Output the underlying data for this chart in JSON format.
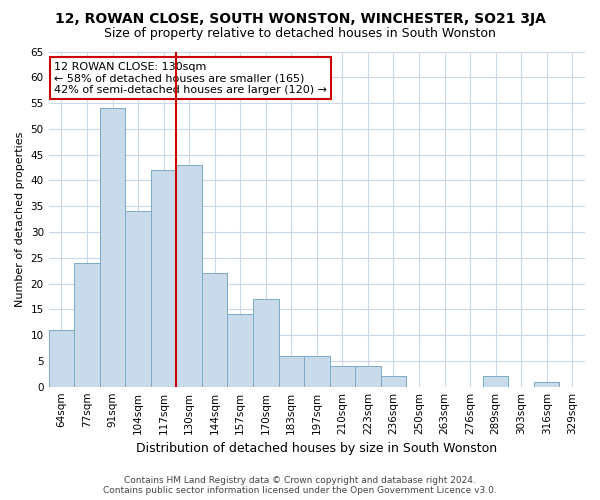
{
  "title": "12, ROWAN CLOSE, SOUTH WONSTON, WINCHESTER, SO21 3JA",
  "subtitle": "Size of property relative to detached houses in South Wonston",
  "xlabel": "Distribution of detached houses by size in South Wonston",
  "ylabel": "Number of detached properties",
  "categories": [
    "64sqm",
    "77sqm",
    "91sqm",
    "104sqm",
    "117sqm",
    "130sqm",
    "144sqm",
    "157sqm",
    "170sqm",
    "183sqm",
    "197sqm",
    "210sqm",
    "223sqm",
    "236sqm",
    "250sqm",
    "263sqm",
    "276sqm",
    "289sqm",
    "303sqm",
    "316sqm",
    "329sqm"
  ],
  "values": [
    11,
    24,
    54,
    34,
    42,
    43,
    22,
    14,
    17,
    6,
    6,
    4,
    4,
    2,
    0,
    0,
    0,
    2,
    0,
    1,
    0
  ],
  "bar_color": "#c9daea",
  "bar_edge_color": "#7aaac8",
  "reference_line_color": "#cc0000",
  "reference_bar_index": 5,
  "annotation_title": "12 ROWAN CLOSE: 130sqm",
  "annotation_line1": "← 58% of detached houses are smaller (165)",
  "annotation_line2": "42% of semi-detached houses are larger (120) →",
  "annotation_box_color": "#ffffff",
  "annotation_box_edge_color": "#cc0000",
  "ylim": [
    0,
    65
  ],
  "yticks": [
    0,
    5,
    10,
    15,
    20,
    25,
    30,
    35,
    40,
    45,
    50,
    55,
    60,
    65
  ],
  "footer_line1": "Contains HM Land Registry data © Crown copyright and database right 2024.",
  "footer_line2": "Contains public sector information licensed under the Open Government Licence v3.0.",
  "background_color": "#ffffff",
  "grid_color": "#c8d8e8",
  "title_fontsize": 10,
  "subtitle_fontsize": 9,
  "xlabel_fontsize": 9,
  "ylabel_fontsize": 8,
  "tick_fontsize": 7.5,
  "annotation_fontsize": 8,
  "footer_fontsize": 6.5
}
